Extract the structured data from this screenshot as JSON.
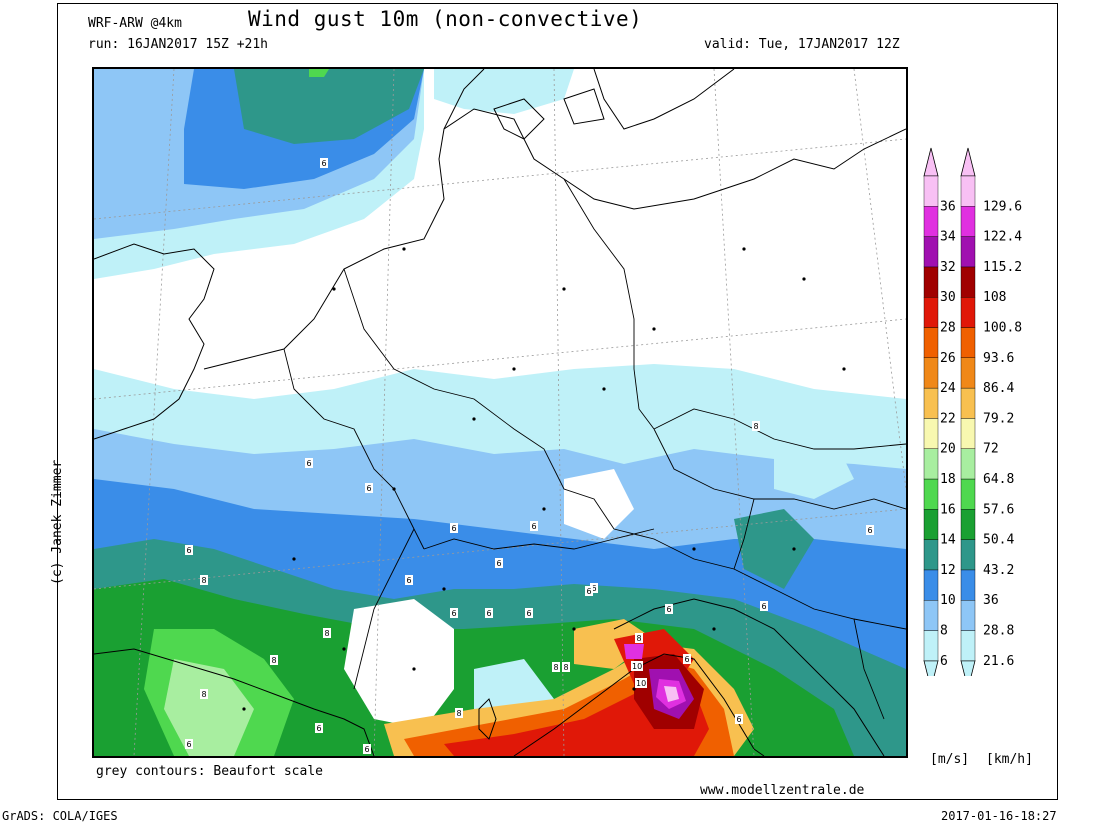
{
  "header": {
    "model": "WRF-ARW @4km",
    "title": "Wind gust 10m (non-convective)",
    "run": "run: 16JAN2017 15Z +21h",
    "valid": "valid: Tue, 17JAN2017 12Z"
  },
  "footer": {
    "contours_note": "grey contours: Beaufort scale",
    "website": "www.modellzentrale.de",
    "software": "GrADS: COLA/IGES",
    "timestamp": "2017-01-16-18:27",
    "copyright": "(c) Janek Zimmer"
  },
  "legend": {
    "unit_ms": "[m/s]",
    "unit_kmh": "[km/h]",
    "levels": [
      {
        "ms": "6",
        "kmh": "21.6",
        "color": "#bff1f8"
      },
      {
        "ms": "8",
        "kmh": "28.8",
        "color": "#8ec6f6"
      },
      {
        "ms": "10",
        "kmh": "36",
        "color": "#3a8de8"
      },
      {
        "ms": "12",
        "kmh": "43.2",
        "color": "#2e978a"
      },
      {
        "ms": "14",
        "kmh": "50.4",
        "color": "#1aa032"
      },
      {
        "ms": "16",
        "kmh": "57.6",
        "color": "#4fd84f"
      },
      {
        "ms": "18",
        "kmh": "64.8",
        "color": "#a8eea0"
      },
      {
        "ms": "20",
        "kmh": "72",
        "color": "#f8f8b0"
      },
      {
        "ms": "22",
        "kmh": "79.2",
        "color": "#f8c050"
      },
      {
        "ms": "24",
        "kmh": "86.4",
        "color": "#f08818"
      },
      {
        "ms": "26",
        "kmh": "93.6",
        "color": "#f06000"
      },
      {
        "ms": "28",
        "kmh": "100.8",
        "color": "#e01808"
      },
      {
        "ms": "30",
        "kmh": "108",
        "color": "#a00000"
      },
      {
        "ms": "32",
        "kmh": "115.2",
        "color": "#a010b0"
      },
      {
        "ms": "34",
        "kmh": "122.4",
        "color": "#e030e0"
      },
      {
        "ms": "36",
        "kmh": "129.6",
        "color": "#f8c0f4"
      }
    ]
  },
  "map": {
    "beaufort_labels": [
      "6",
      "6",
      "6",
      "6",
      "6",
      "6",
      "6",
      "6",
      "6",
      "6",
      "6",
      "6",
      "6",
      "6",
      "6",
      "6",
      "6",
      "6",
      "6",
      "6",
      "6",
      "8",
      "8",
      "8",
      "8",
      "8",
      "8",
      "8",
      "8",
      "8",
      "10",
      "10"
    ]
  }
}
